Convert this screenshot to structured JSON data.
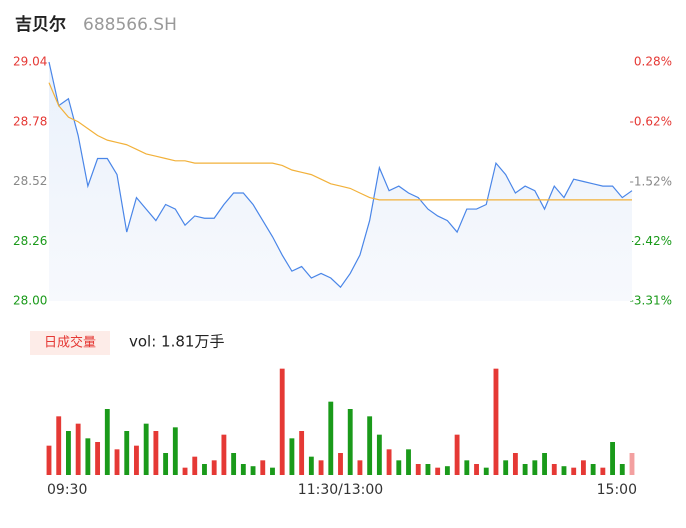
{
  "chart_data": {
    "type": "line",
    "title": "吉贝尔",
    "subtitle": "688566.SH",
    "categories": [
      "09:30",
      null,
      null,
      null,
      null,
      null,
      null,
      null,
      null,
      null,
      null,
      null,
      null,
      null,
      null,
      null,
      null,
      null,
      null,
      null,
      null,
      null,
      null,
      null,
      null,
      null,
      null,
      null,
      null,
      null,
      "11:30/13:00",
      null,
      null,
      null,
      null,
      null,
      null,
      null,
      null,
      null,
      null,
      null,
      null,
      null,
      null,
      null,
      null,
      null,
      null,
      null,
      null,
      null,
      null,
      null,
      null,
      null,
      null,
      null,
      null,
      null,
      "15:00"
    ],
    "series": [
      {
        "color": "#4a86e8",
        "values": [
          29.04,
          28.85,
          28.88,
          28.72,
          28.5,
          28.62,
          28.62,
          28.55,
          28.3,
          28.45,
          28.4,
          28.35,
          28.42,
          28.4,
          28.33,
          28.37,
          28.36,
          28.36,
          28.42,
          28.47,
          28.47,
          28.42,
          28.35,
          28.28,
          28.2,
          28.13,
          28.15,
          28.1,
          28.12,
          28.1,
          28.06,
          28.12,
          28.2,
          28.35,
          28.58,
          28.48,
          28.5,
          28.47,
          28.45,
          28.4,
          28.37,
          28.35,
          28.3,
          28.4,
          28.4,
          28.42,
          28.6,
          28.55,
          28.47,
          28.5,
          28.48,
          28.4,
          28.5,
          28.45,
          28.53,
          28.52,
          28.51,
          28.5,
          28.5,
          28.45,
          28.48
        ]
      },
      {
        "color": "#f2b13a",
        "values": [
          28.95,
          28.85,
          28.8,
          28.78,
          28.75,
          28.72,
          28.7,
          28.69,
          28.68,
          28.66,
          28.64,
          28.63,
          28.62,
          28.61,
          28.61,
          28.6,
          28.6,
          28.6,
          28.6,
          28.6,
          28.6,
          28.6,
          28.6,
          28.6,
          28.59,
          28.57,
          28.56,
          28.55,
          28.53,
          28.51,
          28.5,
          28.49,
          28.47,
          28.45,
          28.44,
          28.44,
          28.44,
          28.44,
          28.44,
          28.44,
          28.44,
          28.44,
          28.44,
          28.44,
          28.44,
          28.44,
          28.44,
          28.44,
          28.44,
          28.44,
          28.44,
          28.44,
          28.44,
          28.44,
          28.44,
          28.44,
          28.44,
          28.44,
          28.44,
          28.44,
          28.44
        ]
      }
    ],
    "ylim": [
      28.0,
      29.04
    ],
    "yticks": [
      {
        "value": 28.0,
        "label": "28.00"
      },
      28.26,
      28.52,
      28.78,
      29.04
    ],
    "ytick_colors": [
      "#1a9a1a",
      "#1a9a1a",
      "#888888",
      "#e53935",
      "#e53935"
    ],
    "y2lim": [
      -3.31,
      0.28
    ],
    "y2ticks": [
      {
        "value": -3.31,
        "label": "-3.31%"
      },
      {
        "value": -2.42,
        "label": "-2.42%"
      },
      {
        "value": -1.52,
        "label": "-1.52%"
      },
      {
        "value": -0.62,
        "label": "-0.62%"
      },
      {
        "value": 0.28,
        "label": "0.28%"
      }
    ],
    "volume": {
      "label": "日成交量",
      "text": "vol: 1.81万手",
      "ylim": [
        0,
        1500
      ],
      "values": [
        400,
        800,
        600,
        700,
        500,
        450,
        900,
        350,
        600,
        400,
        700,
        600,
        300,
        650,
        100,
        250,
        150,
        200,
        550,
        300,
        150,
        120,
        200,
        100,
        1450,
        500,
        600,
        250,
        200,
        1000,
        300,
        900,
        200,
        800,
        550,
        350,
        200,
        350,
        150,
        150,
        100,
        120,
        550,
        200,
        150,
        100,
        1450,
        200,
        300,
        150,
        200,
        300,
        150,
        120,
        100,
        200,
        150,
        100,
        450,
        150,
        300
      ],
      "colors": [
        "#e53935",
        "#e53935",
        "#1a9a1a",
        "#e53935",
        "#1a9a1a",
        "#e53935",
        "#1a9a1a",
        "#e53935",
        "#1a9a1a",
        "#e53935",
        "#1a9a1a",
        "#e53935",
        "#1a9a1a",
        "#1a9a1a",
        "#e53935",
        "#e53935",
        "#1a9a1a",
        "#e53935",
        "#e53935",
        "#1a9a1a",
        "#1a9a1a",
        "#1a9a1a",
        "#e53935",
        "#1a9a1a",
        "#e53935",
        "#1a9a1a",
        "#e53935",
        "#1a9a1a",
        "#e53935",
        "#1a9a1a",
        "#e53935",
        "#1a9a1a",
        "#e53935",
        "#1a9a1a",
        "#1a9a1a",
        "#e53935",
        "#1a9a1a",
        "#1a9a1a",
        "#e53935",
        "#1a9a1a",
        "#e53935",
        "#1a9a1a",
        "#e53935",
        "#1a9a1a",
        "#e53935",
        "#1a9a1a",
        "#e53935",
        "#1a9a1a",
        "#e53935",
        "#1a9a1a",
        "#1a9a1a",
        "#1a9a1a",
        "#e53935",
        "#1a9a1a",
        "#e53935",
        "#e53935",
        "#1a9a1a",
        "#e53935",
        "#1a9a1a",
        "#1a9a1a",
        "#f3a0a0"
      ]
    }
  }
}
